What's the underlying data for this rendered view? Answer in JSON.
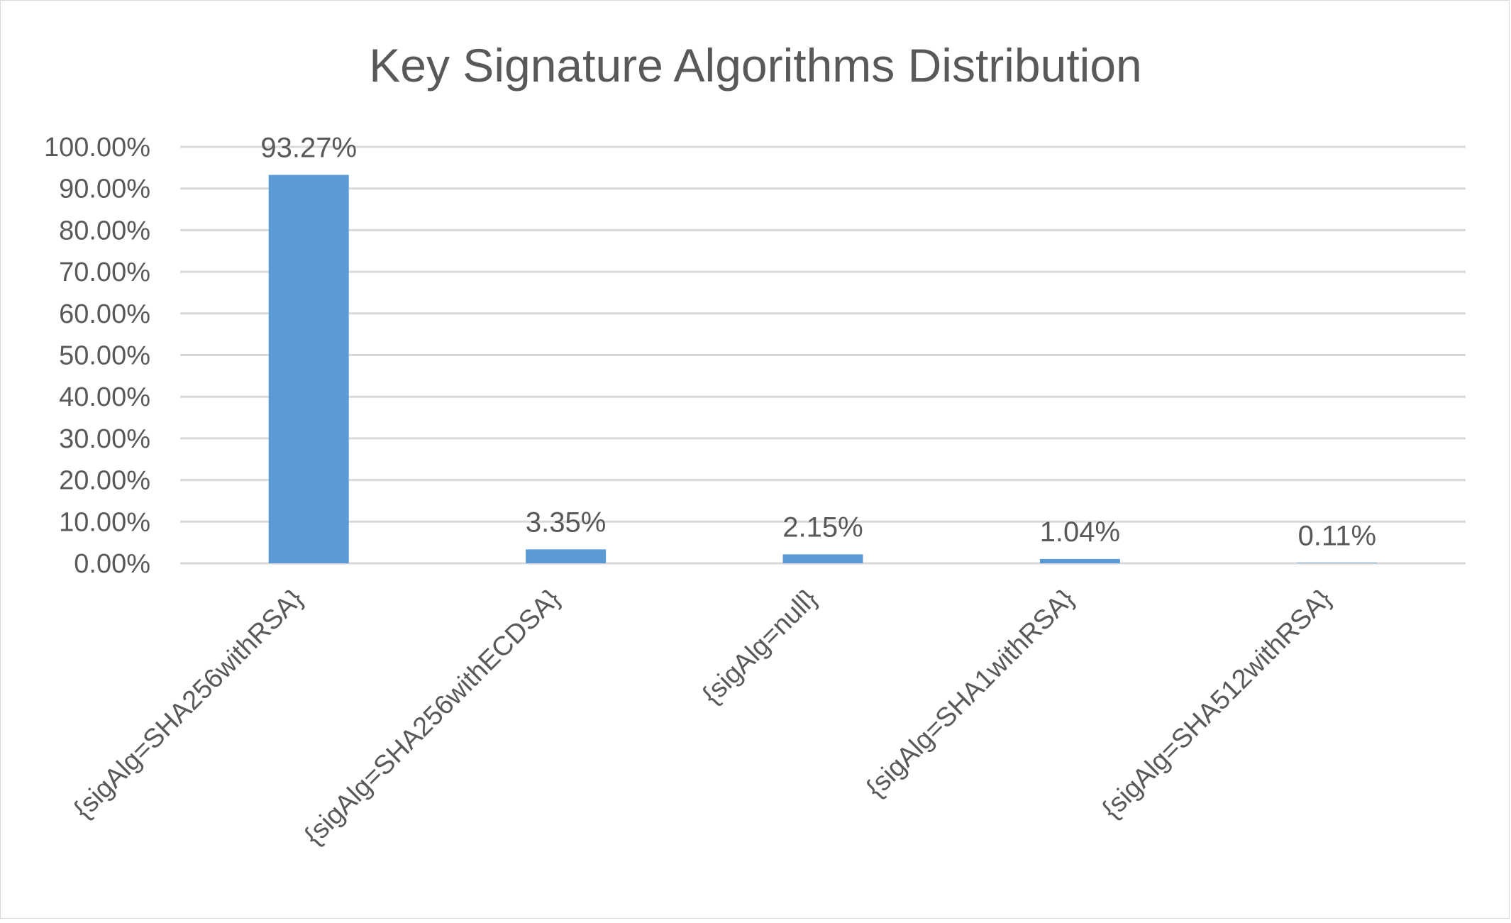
{
  "chart_data": {
    "type": "bar",
    "title": "Key Signature Algorithms Distribution",
    "categories": [
      "{sigAlg=SHA256withRSA}",
      "{sigAlg=SHA256withECDSA}",
      "{sigAlg=null}",
      "{sigAlg=SHA1withRSA}",
      "{sigAlg=SHA512withRSA}"
    ],
    "values": [
      93.27,
      3.35,
      2.15,
      1.04,
      0.11
    ],
    "data_labels": [
      "93.27%",
      "3.35%",
      "2.15%",
      "1.04%",
      "0.11%"
    ],
    "ylim": [
      0,
      100
    ],
    "yticks": [
      0,
      10,
      20,
      30,
      40,
      50,
      60,
      70,
      80,
      90,
      100
    ],
    "ytick_labels": [
      "0.00%",
      "10.00%",
      "20.00%",
      "30.00%",
      "40.00%",
      "50.00%",
      "60.00%",
      "70.00%",
      "80.00%",
      "90.00%",
      "100.00%"
    ],
    "xlabel": "",
    "ylabel": "",
    "grid": true,
    "legend": "none",
    "colors": {
      "bar": "#5b9bd5",
      "grid": "#d9d9d9",
      "text": "#595959"
    }
  }
}
